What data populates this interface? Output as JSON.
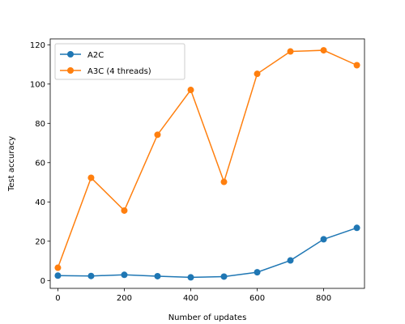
{
  "chart_data": {
    "type": "line",
    "title": "",
    "xlabel": "Number of updates",
    "ylabel": "Test accuracy",
    "xlim": [
      -23,
      923
    ],
    "ylim": [
      -4,
      123
    ],
    "xticks": [
      0,
      200,
      400,
      600,
      800
    ],
    "yticks": [
      0,
      20,
      40,
      60,
      80,
      100,
      120
    ],
    "grid": false,
    "legend_position": "top-left",
    "series": [
      {
        "name": "A2C",
        "color": "#1f77b4",
        "x": [
          0,
          100,
          200,
          300,
          400,
          500,
          600,
          700,
          800,
          900
        ],
        "y": [
          2.5,
          2.3,
          2.9,
          2.2,
          1.6,
          2.0,
          4.2,
          10.2,
          21.0,
          26.8
        ]
      },
      {
        "name": "A3C (4 threads)",
        "color": "#ff7f0e",
        "x": [
          0,
          100,
          200,
          300,
          400,
          500,
          600,
          700,
          800,
          900
        ],
        "y": [
          6.5,
          52.3,
          35.6,
          74.2,
          97.0,
          50.2,
          105.2,
          116.6,
          117.2,
          109.6
        ]
      }
    ]
  }
}
